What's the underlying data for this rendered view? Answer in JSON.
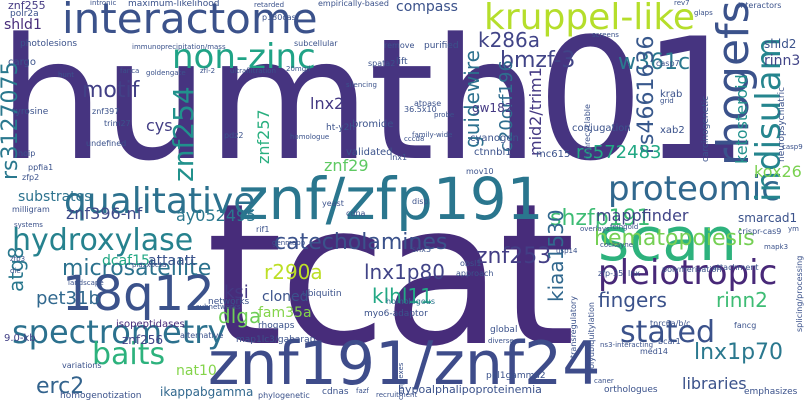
{
  "words": [
    {
      "t": "humth01",
      "c": "#463480"
    },
    {
      "t": "tcat",
      "c": "#472c7a"
    },
    {
      "t": "interactome",
      "c": "#3b528b"
    },
    {
      "t": "znf191/znf24",
      "c": "#3e4c8a"
    },
    {
      "t": "znf/zfp191",
      "c": "#2a768e"
    },
    {
      "t": "kruppel-like",
      "c": "#b5de2b"
    },
    {
      "t": "scan",
      "c": "#2db27d"
    },
    {
      "t": "18q12",
      "c": "#3b528b"
    },
    {
      "t": "qualitative",
      "c": "#2c718e"
    },
    {
      "t": "proteomic",
      "c": "#31688e"
    },
    {
      "t": "pleiotropic",
      "c": "#482878"
    },
    {
      "t": "rhogefs",
      "c": "#3b528b"
    },
    {
      "t": "spectrometry",
      "c": "#2c718e"
    },
    {
      "t": "non-zinc",
      "c": "#20a386"
    },
    {
      "t": "hydroxylase",
      "c": "#26828e"
    },
    {
      "t": "stated",
      "c": "#3b528b"
    },
    {
      "t": "baits",
      "c": "#2db27d"
    },
    {
      "t": "indisulam",
      "c": "#25858e"
    },
    {
      "t": "znf254",
      "c": "#21918c"
    },
    {
      "t": "bmzf-3",
      "c": "#414487"
    },
    {
      "t": "k286a",
      "c": "#414487"
    },
    {
      "t": "w361c",
      "c": "#2a788e"
    },
    {
      "t": "rs3127075",
      "c": "#2a788e"
    },
    {
      "t": "rs4661636",
      "c": "#38588c"
    },
    {
      "t": "motif",
      "c": "#424086"
    },
    {
      "t": "microsatellite",
      "c": "#2c728e"
    },
    {
      "t": "catecholamines",
      "c": "#3b528b"
    },
    {
      "t": "znf253",
      "c": "#433e85"
    },
    {
      "t": "shzfp191",
      "c": "#3dbc74"
    },
    {
      "t": "hematopoiesis",
      "c": "#75d054"
    },
    {
      "t": "lnx1p80",
      "c": "#414487"
    },
    {
      "t": "lnx1p70",
      "c": "#2a788e"
    },
    {
      "t": "r290a",
      "c": "#bddf26"
    },
    {
      "t": "klhl11",
      "c": "#22a884"
    },
    {
      "t": "fingers",
      "c": "#3b528b"
    },
    {
      "t": "rinn2",
      "c": "#3dbc74"
    },
    {
      "t": "kiaa1530",
      "c": "#31688e"
    },
    {
      "t": "dlga",
      "c": "#6ece58"
    },
    {
      "t": "ksi",
      "c": "#443983"
    },
    {
      "t": "pet31b",
      "c": "#31688e"
    },
    {
      "t": "erc2",
      "c": "#33638d"
    },
    {
      "t": "atg8",
      "c": "#2a788e"
    },
    {
      "t": "guidewire",
      "c": "#2c718e"
    },
    {
      "t": "c20orf196",
      "c": "#2f6c8e"
    },
    {
      "t": "rs572483",
      "c": "#22a884"
    },
    {
      "t": "mid2/trim1",
      "c": "#443983"
    },
    {
      "t": "ketosteroid",
      "c": "#21918c"
    },
    {
      "t": "mappfinder",
      "c": "#414487"
    },
    {
      "t": "smarcad1",
      "c": "#3b528b"
    },
    {
      "t": "kox26",
      "c": "#7ad151"
    },
    {
      "t": "lnx2",
      "c": "#443983"
    },
    {
      "t": "znf257",
      "c": "#29af7f"
    },
    {
      "t": "cys",
      "c": "#433e85"
    },
    {
      "t": "znf29",
      "c": "#5ec962"
    },
    {
      "t": "ay052495",
      "c": "#2a788e"
    },
    {
      "t": "znf396-nf",
      "c": "#3e4a89"
    },
    {
      "t": "substrates",
      "c": "#2c728e"
    },
    {
      "t": "dcaf15",
      "c": "#22a884"
    },
    {
      "t": "attaatt",
      "c": "#3b528b"
    },
    {
      "t": "cloned",
      "c": "#3b528b"
    },
    {
      "t": "fam35a",
      "c": "#84d44b"
    },
    {
      "t": "nat10",
      "c": "#84d44b"
    },
    {
      "t": "baits",
      "c": "#2db27d"
    },
    {
      "t": "libraries",
      "c": "#3b528b"
    },
    {
      "t": "rinn3",
      "c": "#414487"
    },
    {
      "t": "shld2",
      "c": "#3b528b"
    },
    {
      "t": "shld1",
      "c": "#472c7a"
    },
    {
      "t": "compass",
      "c": "#3b528b"
    },
    {
      "t": "znf255",
      "c": "#443983"
    },
    {
      "t": "znf256",
      "c": "#414487"
    },
    {
      "t": "9.0-kb",
      "c": "#424086"
    },
    {
      "t": "isopeptidases",
      "c": "#472c7a"
    },
    {
      "t": "ikappabgamma",
      "c": "#31688e"
    },
    {
      "t": "homogenotization",
      "c": "#3b528b"
    },
    {
      "t": "myo6-adaptor",
      "c": "#3b528b"
    },
    {
      "t": "ubiquitin",
      "c": "#3b528b"
    },
    {
      "t": "map1lc3/gabarap",
      "c": "#3b528b"
    },
    {
      "t": "hypoalphalipoproteinemia",
      "c": "#3b528b"
    },
    {
      "t": "ppl1gamma2",
      "c": "#3b528b"
    },
    {
      "t": "cdnas",
      "c": "#3b528b"
    },
    {
      "t": "networks",
      "c": "#3b528b"
    },
    {
      "t": "global",
      "c": "#3b528b"
    },
    {
      "t": "homologous",
      "c": "#2c718e"
    },
    {
      "t": "bromide",
      "c": "#3b528b"
    },
    {
      "t": "validated",
      "c": "#3b528b"
    },
    {
      "t": "cyanogen",
      "c": "#3b528b"
    },
    {
      "t": "ctnnbl1",
      "c": "#3b528b"
    },
    {
      "t": "mc615",
      "c": "#3b528b"
    },
    {
      "t": "gw182",
      "c": "#443983"
    },
    {
      "t": "conjugation",
      "c": "#3b528b"
    },
    {
      "t": "xab2",
      "c": "#3b528b"
    },
    {
      "t": "krab",
      "c": "#3b528b"
    },
    {
      "t": "casp7",
      "c": "#3b528b"
    },
    {
      "t": "carcinogenetic",
      "c": "#3b528b"
    },
    {
      "t": "neuropsychiatric",
      "c": "#3b528b"
    },
    {
      "t": "interactors",
      "c": "#3b528b"
    },
    {
      "t": "empirically-based",
      "c": "#3b528b"
    },
    {
      "t": "p130cas",
      "c": "#3b528b"
    },
    {
      "t": "maximum-likelihood",
      "c": "#3b528b"
    },
    {
      "t": "photolesions",
      "c": "#3b528b"
    },
    {
      "t": "subcellular",
      "c": "#3b528b"
    },
    {
      "t": "spata2",
      "c": "#3b528b"
    },
    {
      "t": "remove",
      "c": "#3b528b"
    },
    {
      "t": "purified",
      "c": "#3b528b"
    },
    {
      "t": "cargo",
      "c": "#3b528b"
    },
    {
      "t": "znf397",
      "c": "#3b528b"
    },
    {
      "t": "trim27",
      "c": "#3b528b"
    },
    {
      "t": "tyrosine",
      "c": "#3b528b"
    },
    {
      "t": "undefined",
      "c": "#3b528b"
    },
    {
      "t": "hoip",
      "c": "#3b528b"
    },
    {
      "t": "ppfia1",
      "c": "#3b528b"
    },
    {
      "t": "zfp2",
      "c": "#3b528b"
    },
    {
      "t": "milligram",
      "c": "#3b528b"
    },
    {
      "t": "pdz2",
      "c": "#3b528b"
    },
    {
      "t": "ht-y2h",
      "c": "#3b528b"
    },
    {
      "t": "atpase",
      "c": "#3b528b"
    },
    {
      "t": "yeast",
      "c": "#3b528b"
    },
    {
      "t": "cdna",
      "c": "#3b528b"
    },
    {
      "t": "disp",
      "c": "#3b528b"
    },
    {
      "t": "lnx1",
      "c": "#3b528b"
    },
    {
      "t": "mov10",
      "c": "#3b528b"
    },
    {
      "t": "snx5",
      "c": "#3b528b"
    },
    {
      "t": "obsl1",
      "c": "#3b528b"
    },
    {
      "t": "approach",
      "c": "#3b528b"
    },
    {
      "t": "zfp-35",
      "c": "#3b528b"
    },
    {
      "t": "lnx",
      "c": "#3b528b"
    },
    {
      "t": "tnrc6a/b/c",
      "c": "#3b528b"
    },
    {
      "t": "bcar1",
      "c": "#3b528b"
    },
    {
      "t": "fancg",
      "c": "#3b528b"
    },
    {
      "t": "med14",
      "c": "#3b528b"
    },
    {
      "t": "attachment",
      "c": "#3b528b"
    },
    {
      "t": "polymerisation",
      "c": "#3b528b"
    },
    {
      "t": "crispr-cas9",
      "c": "#3b528b"
    },
    {
      "t": "orthologues",
      "c": "#3b528b"
    },
    {
      "t": "emphasizes",
      "c": "#3b528b"
    },
    {
      "t": "phylogenetic",
      "c": "#3b528b"
    },
    {
      "t": "complexes",
      "c": "#3b528b"
    },
    {
      "t": "recruitment",
      "c": "#3b528b"
    },
    {
      "t": "variations",
      "c": "#3b528b"
    },
    {
      "t": "alternative",
      "c": "#3b528b"
    },
    {
      "t": "rhogaps",
      "c": "#3b528b"
    },
    {
      "t": "transregulatory",
      "c": "#3b528b"
    },
    {
      "t": "polyubiquitylation",
      "c": "#3b528b"
    },
    {
      "t": "splicing/processing",
      "c": "#3b528b"
    },
    {
      "t": "nat10",
      "c": "#84d44b"
    },
    {
      "t": "rif1",
      "c": "#3b528b"
    },
    {
      "t": "systems",
      "c": "#3b528b"
    },
    {
      "t": "landscape",
      "c": "#3b528b"
    },
    {
      "t": "subnetworks",
      "c": "#3b528b"
    },
    {
      "t": "polr2a",
      "c": "#3b528b"
    },
    {
      "t": "zfp3",
      "c": "#3b528b"
    },
    {
      "t": "die",
      "c": "#3b528b"
    },
    {
      "t": "piasxbeta",
      "c": "#3b528b"
    },
    {
      "t": "homologue",
      "c": "#3b528b"
    },
    {
      "t": "lift",
      "c": "#3b528b"
    },
    {
      "t": "silencing",
      "c": "#3b528b"
    },
    {
      "t": "ultrafiltration",
      "c": "#3b528b"
    },
    {
      "t": "goldengate",
      "c": "#3b528b"
    },
    {
      "t": "fanca",
      "c": "#3b528b"
    },
    {
      "t": "immunoprecipitation/mass",
      "c": "#3b528b"
    },
    {
      "t": "intronic",
      "c": "#3b528b"
    },
    {
      "t": "retarded",
      "c": "#3b528b"
    },
    {
      "t": "screens",
      "c": "#3b528b"
    },
    {
      "t": "family-wide",
      "c": "#3b528b"
    },
    {
      "t": "36.5x10",
      "c": "#3b528b"
    },
    {
      "t": "cccd8",
      "c": "#3b528b"
    },
    {
      "t": "ubiquitin-like",
      "c": "#3b528b"
    },
    {
      "t": "20mg/l",
      "c": "#3b528b"
    },
    {
      "t": "ggfm",
      "c": "#3b528b"
    },
    {
      "t": "hunt",
      "c": "#3b528b"
    },
    {
      "t": "glaps",
      "c": "#3b528b"
    },
    {
      "t": "rev7",
      "c": "#3b528b"
    },
    {
      "t": "caner",
      "c": "#3b528b"
    },
    {
      "t": "mapk3",
      "c": "#3b528b"
    },
    {
      "t": "ym",
      "c": "#3b528b"
    },
    {
      "t": "cockayne",
      "c": "#3b528b"
    },
    {
      "t": "overlays",
      "c": "#3b528b"
    },
    {
      "t": "usp14",
      "c": "#3b528b"
    },
    {
      "t": "feingold",
      "c": "#3b528b"
    },
    {
      "t": "genmapp",
      "c": "#3b528b"
    },
    {
      "t": "aa",
      "c": "#3b528b"
    },
    {
      "t": "fazf",
      "c": "#3b528b"
    },
    {
      "t": "a3",
      "c": "#3b528b"
    },
    {
      "t": "pp",
      "c": "#3b528b"
    },
    {
      "t": "zfl-2",
      "c": "#3b528b"
    },
    {
      "t": "casp9",
      "c": "#3b528b"
    },
    {
      "t": "probe",
      "c": "#3b528b"
    },
    {
      "t": "grid",
      "c": "#3b528b"
    },
    {
      "t": "diverse",
      "c": "#3b528b"
    },
    {
      "t": "nonrecyclable",
      "c": "#3b528b"
    },
    {
      "t": "ns3-interacting",
      "c": "#3b528b"
    }
  ]
}
